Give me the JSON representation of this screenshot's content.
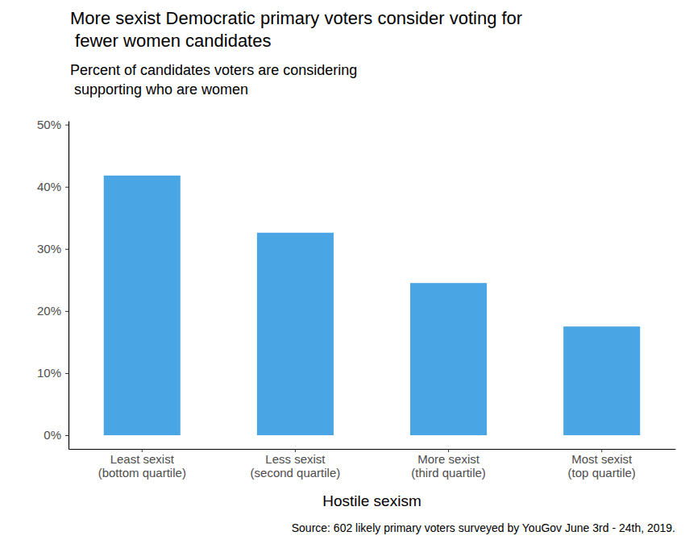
{
  "chart_data": {
    "type": "bar",
    "title": "More sexist Democratic primary voters consider voting for\n fewer women candidates",
    "subtitle": "Percent of candidates voters are considering\n supporting who are women",
    "x_label": "Hostile sexism",
    "source": "Source: 602 likely primary voters surveyed by YouGov June 3rd - 24th, 2019.",
    "categories": [
      "Least sexist\n(bottom quartile)",
      "Less sexist\n(second quartile)",
      "More sexist\n(third quartile)",
      "Most sexist\n(top quartile)"
    ],
    "values": [
      41.8,
      32.6,
      24.5,
      17.5
    ],
    "color": "#49a5e4",
    "ylim": [
      -2.2,
      50.6
    ],
    "yticks": [
      {
        "value": 0,
        "label": "0%"
      },
      {
        "value": 10,
        "label": "10%"
      },
      {
        "value": 20,
        "label": "20%"
      },
      {
        "value": 30,
        "label": "30%"
      },
      {
        "value": 40,
        "label": "40%"
      },
      {
        "value": 50,
        "label": "50%"
      }
    ],
    "grid": false
  }
}
